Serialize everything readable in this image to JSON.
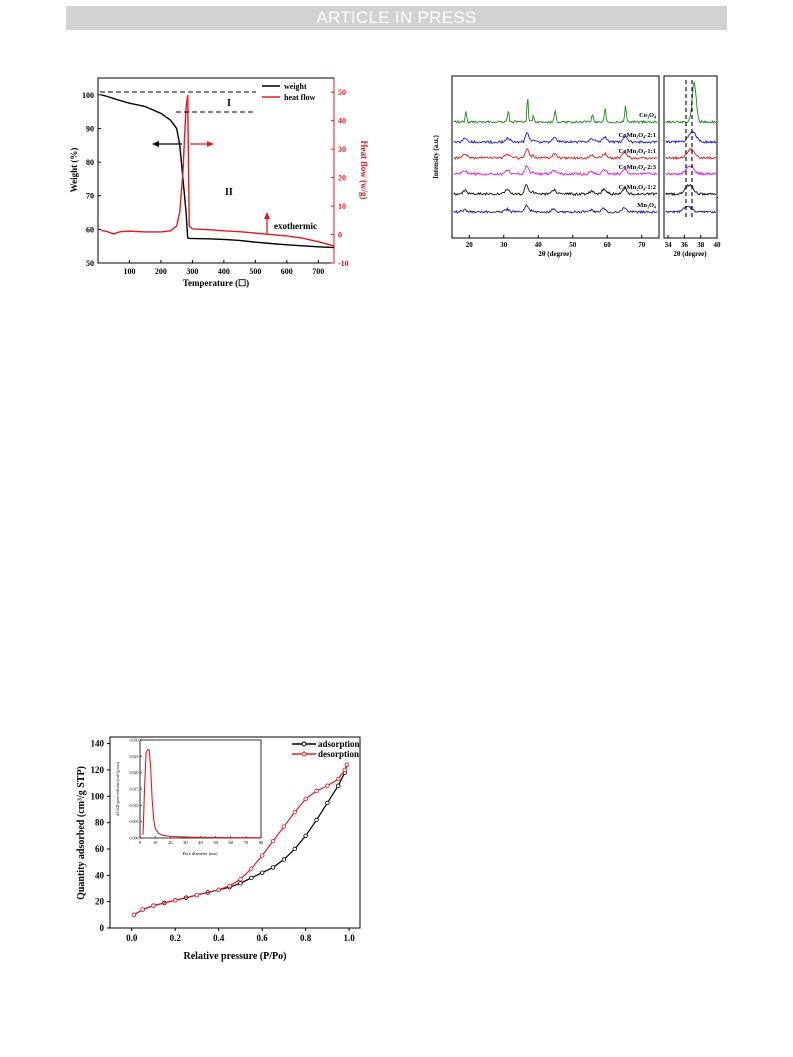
{
  "banner": {
    "text": "ARTICLE IN PRESS"
  },
  "tga": {
    "type": "line",
    "xlabel": "Temperature (☐)",
    "ylabel_left": "Weight (%)",
    "ylabel_right": "Heat flow (w/g)",
    "xlim": [
      0,
      750
    ],
    "ylim_left": [
      50,
      105
    ],
    "ylim_right": [
      -10,
      55
    ],
    "xticks": [
      "100",
      "200",
      "300",
      "400",
      "500",
      "600",
      "700"
    ],
    "yticks_left": [
      "50",
      "60",
      "70",
      "80",
      "90",
      "100"
    ],
    "yticks_right": [
      "-10",
      "0",
      "10",
      "20",
      "30",
      "40",
      "50"
    ],
    "legend": [
      "weight",
      "heat flow"
    ],
    "annotations": [
      "I",
      "II",
      "exothermic"
    ],
    "colors": {
      "weight": "#000000",
      "heat_flow": "#e8191c"
    },
    "weight_series": {
      "x": [
        10,
        30,
        60,
        100,
        150,
        200,
        230,
        250,
        260,
        270,
        280,
        285,
        290,
        350,
        400,
        450,
        500,
        550,
        600,
        650,
        700,
        750
      ],
      "y": [
        100,
        99.5,
        98.6,
        97.5,
        96.5,
        94.5,
        92.5,
        90,
        85,
        75,
        65,
        57.5,
        57.3,
        57.2,
        57,
        56.7,
        56.2,
        55.8,
        55.4,
        55.1,
        54.8,
        54.6
      ]
    },
    "heat_series": {
      "x": [
        10,
        30,
        50,
        70,
        100,
        150,
        200,
        230,
        250,
        260,
        270,
        275,
        280,
        285,
        290,
        300,
        350,
        400,
        450,
        500,
        550,
        600,
        650,
        700,
        750
      ],
      "y": [
        1.5,
        1,
        0.2,
        1,
        1.2,
        0.9,
        0.9,
        1.3,
        3,
        8,
        22,
        34,
        45,
        49,
        3,
        2,
        1.7,
        1.3,
        1,
        0.5,
        0,
        -0.5,
        -1.3,
        -2.5,
        -4
      ]
    }
  },
  "xrd": {
    "type": "line",
    "ylabel": "Intensity (a.u.)",
    "xlabel_main": "2θ (degree)",
    "xlabel_zoom": "2θ (degree)",
    "xlim_main": [
      15,
      75
    ],
    "xlim_zoom": [
      33.5,
      40
    ],
    "xticks_main": [
      "20",
      "30",
      "40",
      "50",
      "60",
      "70"
    ],
    "xticks_zoom": [
      "34",
      "36",
      "38",
      "40"
    ],
    "series": [
      {
        "name": "Co3O4",
        "label": "Co₃O₄",
        "color": "#1a8a1a"
      },
      {
        "name": "CoMn2O4-2:1",
        "label": "CoMn₂O₄-2:1",
        "color": "#1a1ae6"
      },
      {
        "name": "CoMn2O4-1:1",
        "label": "CoMn₂O₄-1:1",
        "color": "#e8191c"
      },
      {
        "name": "CoMn2O4-2:3",
        "label": "CoMn₂O₄-2:3",
        "color": "#e619e6"
      },
      {
        "name": "CoMn2O4-1:2",
        "label": "CoMn₂O₄-1:2",
        "color": "#111111"
      },
      {
        "name": "Mn3O4",
        "label": "Mn₃O₄",
        "color": "#1a1aa0"
      }
    ]
  },
  "bet": {
    "type": "line",
    "xlabel": "Relative pressure (P/Po)",
    "ylabel": "Quantity adsorbed (cm³/g STP)",
    "xlim": [
      -0.1,
      1.05
    ],
    "ylim": [
      0,
      145
    ],
    "xticks": [
      "0.0",
      "0.2",
      "0.4",
      "0.6",
      "0.8",
      "1.0"
    ],
    "yticks": [
      "0",
      "20",
      "40",
      "60",
      "80",
      "100",
      "120",
      "140"
    ],
    "legend": [
      "adsorption",
      "desorption"
    ],
    "colors": {
      "adsorption": "#000000",
      "desorption": "#e8191c"
    },
    "adsorption": {
      "x": [
        0.01,
        0.05,
        0.1,
        0.15,
        0.2,
        0.25,
        0.3,
        0.35,
        0.4,
        0.45,
        0.5,
        0.55,
        0.6,
        0.65,
        0.7,
        0.75,
        0.8,
        0.85,
        0.9,
        0.95,
        0.98,
        0.99
      ],
      "y": [
        10,
        14,
        17,
        19,
        21,
        23,
        25,
        27,
        29,
        31,
        34,
        38,
        42,
        46,
        52,
        60,
        70,
        82,
        95,
        108,
        118,
        124
      ]
    },
    "desorption": {
      "x": [
        0.01,
        0.05,
        0.1,
        0.2,
        0.3,
        0.4,
        0.45,
        0.5,
        0.55,
        0.6,
        0.65,
        0.7,
        0.75,
        0.8,
        0.85,
        0.9,
        0.95,
        0.98,
        0.99
      ],
      "y": [
        10,
        14,
        17,
        21,
        25,
        29,
        32,
        37,
        45,
        55,
        66,
        77,
        88,
        98,
        104,
        108,
        113,
        120,
        124
      ]
    },
    "inset": {
      "xlabel": "Pore diameter (nm)",
      "ylabel": "dV/dD pore volume (cm³/g·nm)",
      "xlim": [
        0,
        80
      ],
      "ylim": [
        0,
        0.03
      ],
      "xticks": [
        "0",
        "10",
        "20",
        "30",
        "40",
        "50",
        "60",
        "70",
        "80"
      ],
      "yticks": [
        "0.000",
        "0.005",
        "0.010",
        "0.015",
        "0.020",
        "0.025",
        "0.030"
      ],
      "x": [
        2,
        3,
        4,
        5,
        6,
        7,
        8,
        9,
        10,
        12,
        15,
        20,
        30,
        40,
        60,
        80
      ],
      "y": [
        0.001,
        0.015,
        0.026,
        0.027,
        0.027,
        0.022,
        0.012,
        0.006,
        0.003,
        0.0015,
        0.0008,
        0.0005,
        0.0003,
        0.0002,
        0.0001,
        0.0001
      ]
    }
  }
}
